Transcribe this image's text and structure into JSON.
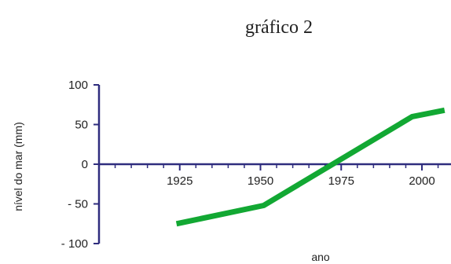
{
  "chart_data": {
    "type": "line",
    "title": "gráfico 2",
    "xlabel": "ano",
    "ylabel": "nível do mar (mm)",
    "x_ticks": [
      {
        "value": 1925,
        "label": "1925"
      },
      {
        "value": 1950,
        "label": "1950"
      },
      {
        "value": 1975,
        "label": "1975"
      },
      {
        "value": 2000,
        "label": "2000"
      }
    ],
    "y_ticks": [
      {
        "value": 100,
        "label": "100"
      },
      {
        "value": 50,
        "label": "50"
      },
      {
        "value": 0,
        "label": "0"
      },
      {
        "value": -50,
        "label": "- 50"
      },
      {
        "value": -100,
        "label": "- 100"
      }
    ],
    "xlim": [
      1900,
      2009
    ],
    "ylim": [
      -100,
      100
    ],
    "grid": false,
    "series": [
      {
        "color": "#12a833",
        "points": [
          {
            "x": 1924,
            "y": -75
          },
          {
            "x": 1951,
            "y": -52
          },
          {
            "x": 1997,
            "y": 60
          },
          {
            "x": 2007,
            "y": 68
          }
        ]
      }
    ],
    "colors": {
      "axis": "#2f2d7e",
      "line": "#12a833"
    }
  }
}
